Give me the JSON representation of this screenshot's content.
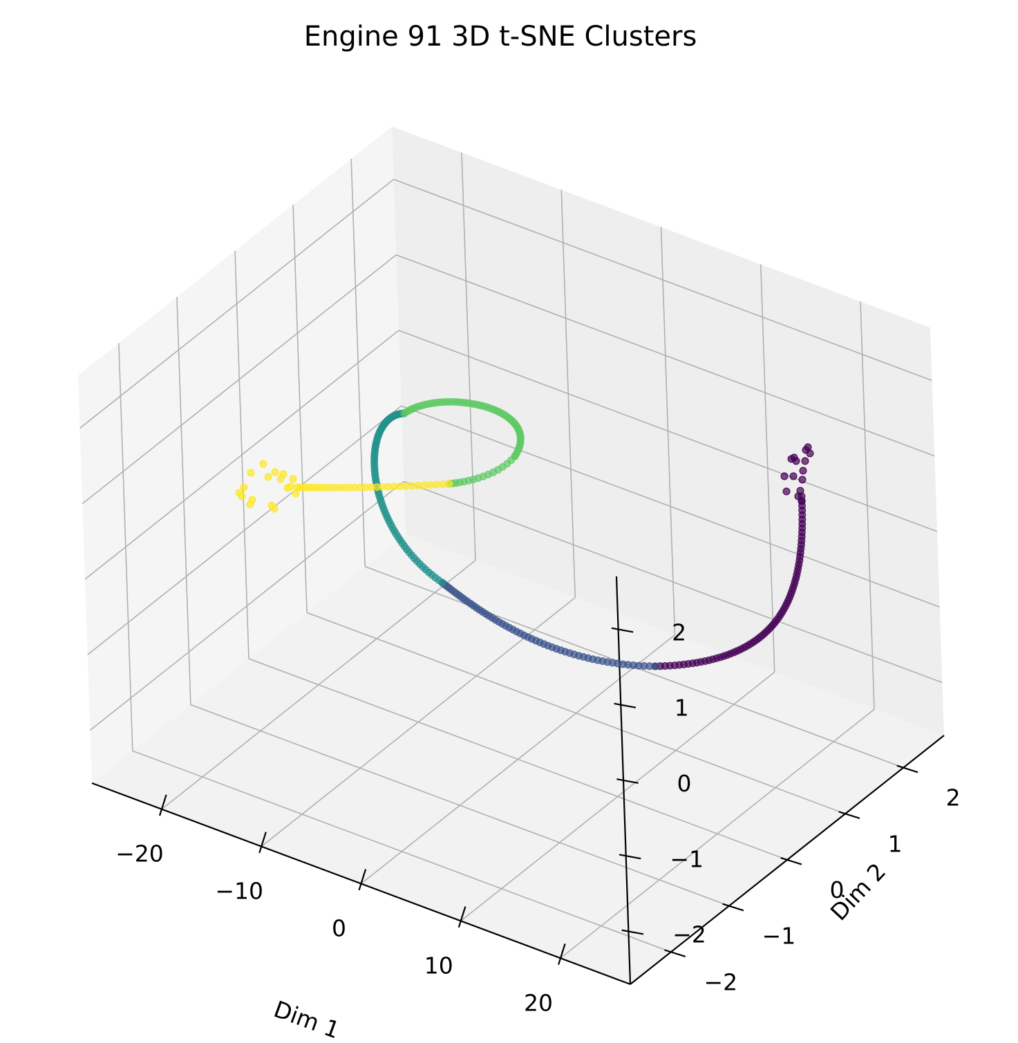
{
  "chart_data": {
    "type": "scatter",
    "projection": "3d",
    "title": "Engine 91 3D t-SNE Clusters",
    "xlabel": "Dim 1",
    "ylabel": "Dim 2",
    "zlabel": "",
    "colormap": "viridis",
    "x_ticks": [
      "−20",
      "−10",
      "0",
      "10",
      "20"
    ],
    "y_ticks": [
      "−2",
      "−1",
      "0",
      "1",
      "2"
    ],
    "z_ticks": [
      "−2",
      "−1",
      "0",
      "1",
      "2"
    ],
    "xlim": [
      -27,
      27
    ],
    "ylim": [
      -2.7,
      2.7
    ],
    "zlim": [
      -2.7,
      2.7
    ],
    "grid": true,
    "pane_colors": {
      "left": "#f5f5f5",
      "back": "#eeeeee",
      "floor": "#f2f2f2"
    },
    "clusters": [
      {
        "color": "#440154"
      },
      {
        "color": "#3b528b"
      },
      {
        "color": "#21918c"
      },
      {
        "color": "#5ec962"
      },
      {
        "color": "#fde725"
      }
    ]
  }
}
